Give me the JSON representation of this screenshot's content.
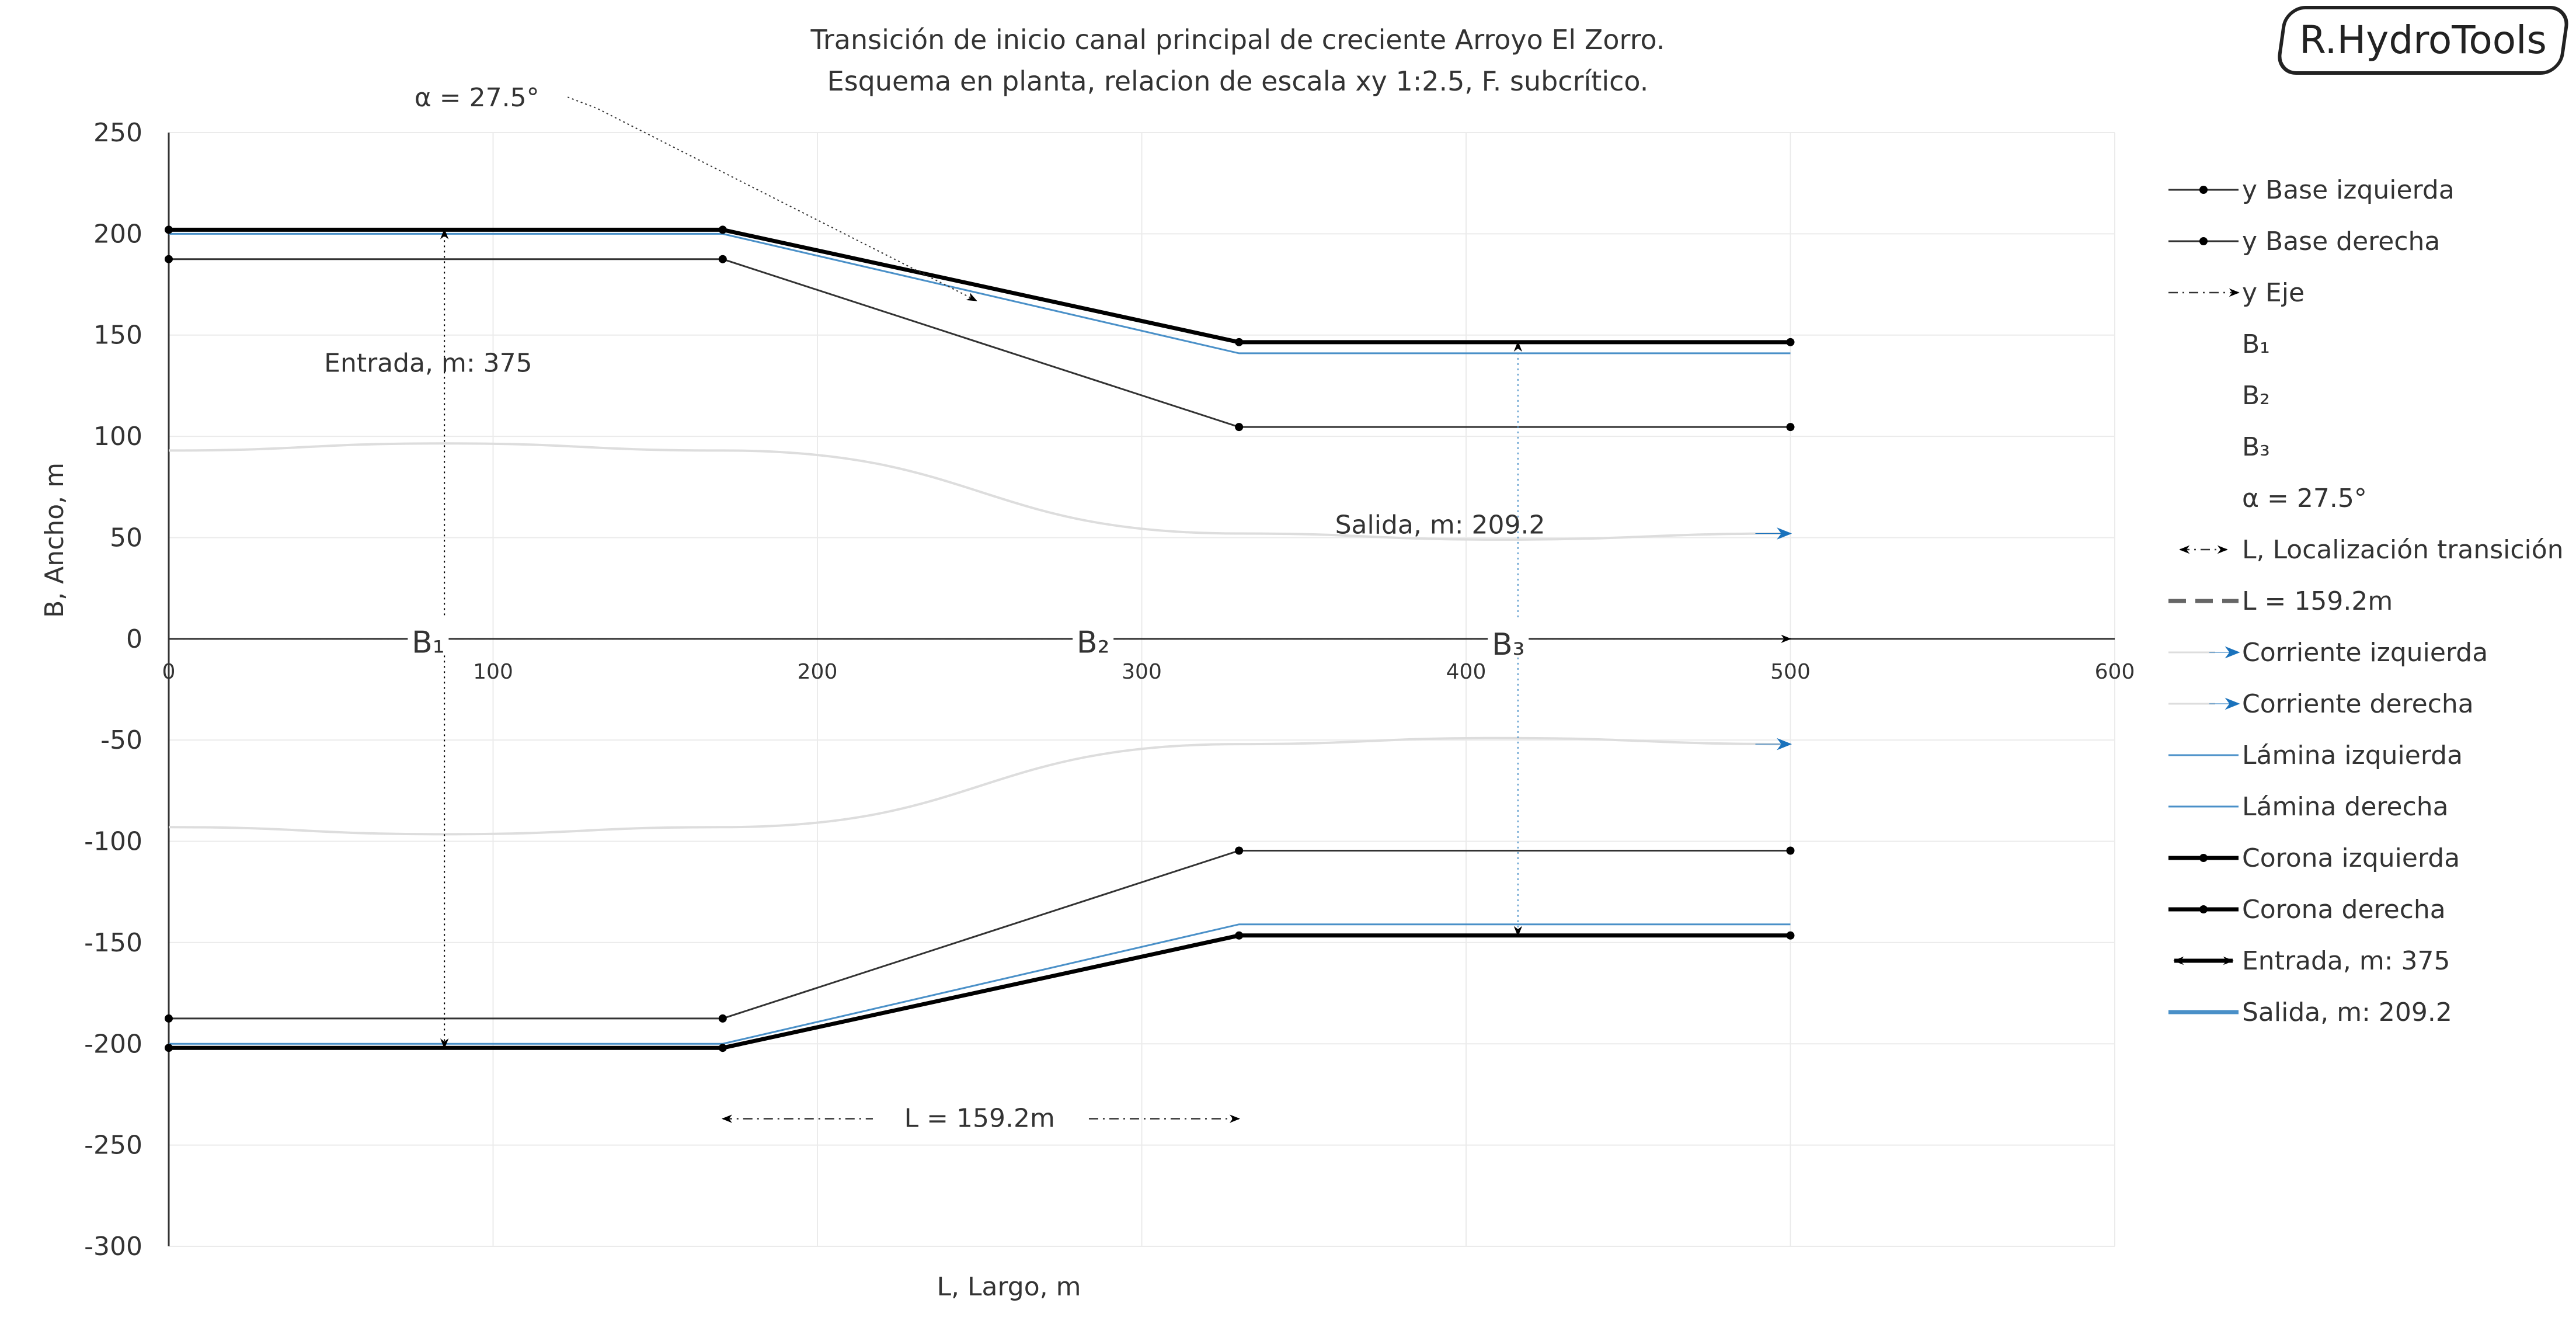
{
  "logo": "R.HydroTools",
  "chart_data": {
    "type": "line",
    "title": "Transición de inicio canal principal de creciente Arroyo El Zorro.",
    "subtitle": "Esquema en planta, relacion de escala xy  1:2.5, F. subcrítico.",
    "xlabel": "L, Largo, m",
    "ylabel": "B, Ancho, m",
    "xlim": [
      0,
      600
    ],
    "ylim": [
      -300,
      250
    ],
    "xticks": [
      0,
      100,
      200,
      300,
      400,
      500,
      600
    ],
    "yticks": [
      250,
      200,
      150,
      100,
      50,
      0,
      -50,
      -100,
      -150,
      -200,
      -250,
      -300
    ],
    "grid": true,
    "legend_position": "right",
    "series": [
      {
        "name": "y Base izquierda",
        "x": [
          0,
          170.8,
          330,
          500
        ],
        "y": [
          187.5,
          187.5,
          104.6,
          104.6
        ],
        "color": "#333333",
        "style": "solid",
        "marker": "dot"
      },
      {
        "name": "y Base derecha",
        "x": [
          0,
          170.8,
          330,
          500
        ],
        "y": [
          -187.5,
          -187.5,
          -104.6,
          -104.6
        ],
        "color": "#333333",
        "style": "solid",
        "marker": "dot"
      },
      {
        "name": "y Eje",
        "x": [
          0,
          500
        ],
        "y": [
          0,
          0
        ],
        "color": "#333333",
        "style": "dashdot",
        "marker": "arrow"
      },
      {
        "name": "B₁"
      },
      {
        "name": "B₂"
      },
      {
        "name": "B₃"
      },
      {
        "name": "α = 27.5°"
      },
      {
        "name": "L, Localización transición",
        "x": [
          170.8,
          330
        ],
        "y": [
          -237,
          -237
        ],
        "color": "#333333",
        "style": "dashdot",
        "marker": "double-arrow"
      },
      {
        "name": "L = 159.2m",
        "color": "#666666",
        "style": "dashed"
      },
      {
        "name": "Corriente izquierda",
        "x": [
          0,
          85,
          170.8,
          330,
          410,
          500
        ],
        "y": [
          93,
          96.5,
          93,
          52,
          49,
          52
        ],
        "color": "#dddddd",
        "style": "solid",
        "marker": "arrow-blue"
      },
      {
        "name": "Corriente derecha",
        "x": [
          0,
          85,
          170.8,
          330,
          410,
          500
        ],
        "y": [
          -93,
          -96.5,
          -93,
          -52,
          -49,
          -52
        ],
        "color": "#dddddd",
        "style": "solid",
        "marker": "arrow-blue"
      },
      {
        "name": "Lámina izquierda",
        "x": [
          0,
          170.8,
          330,
          500
        ],
        "y": [
          200,
          200,
          141,
          141
        ],
        "color": "#4a90c8",
        "style": "solid"
      },
      {
        "name": "Lámina derecha",
        "x": [
          0,
          170.8,
          330,
          500
        ],
        "y": [
          -200,
          -200,
          -141,
          -141
        ],
        "color": "#4a90c8",
        "style": "solid"
      },
      {
        "name": "Corona izquierda",
        "x": [
          0,
          170.8,
          330,
          500
        ],
        "y": [
          202,
          202,
          146.5,
          146.5
        ],
        "color": "#000000",
        "style": "thick",
        "marker": "dot"
      },
      {
        "name": "Corona derecha",
        "x": [
          0,
          170.8,
          330,
          500
        ],
        "y": [
          -202,
          -202,
          -146.5,
          -146.5
        ],
        "color": "#000000",
        "style": "thick",
        "marker": "dot"
      },
      {
        "name": "Entrada, m: 375",
        "x": [
          85,
          85
        ],
        "y": [
          202,
          -202
        ],
        "color": "#000000",
        "style": "dotted",
        "marker": "double-arrow"
      },
      {
        "name": "Salida, m: 209.2",
        "x": [
          416,
          416
        ],
        "y": [
          146.5,
          -146.5
        ],
        "color": "#4a90c8",
        "style": "dotted",
        "marker": "double-arrow"
      }
    ],
    "annotations": [
      {
        "text": "α = 27.5°",
        "x": 95,
        "y": 267
      },
      {
        "text": "Entrada, m: 375",
        "x": 80,
        "y": 136
      },
      {
        "text": "Salida, m: 209.2",
        "x": 392,
        "y": 56
      },
      {
        "text": "L = 159.2m",
        "x": 250,
        "y": -237
      },
      {
        "text": "B₁",
        "x": 80,
        "y": -1
      },
      {
        "text": "B₂",
        "x": 285,
        "y": -1
      },
      {
        "text": "B₃",
        "x": 413,
        "y": -2
      }
    ]
  }
}
